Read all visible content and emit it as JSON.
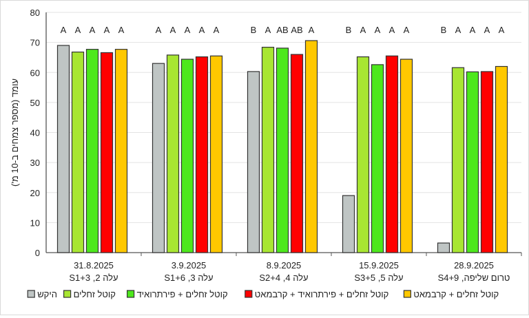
{
  "chart_data": {
    "type": "bar",
    "ylabel": "עומד (מספר צמחים ב-10 מ')",
    "ylim": [
      0,
      80
    ],
    "yticks": [
      0,
      10,
      20,
      30,
      40,
      50,
      60,
      70,
      80
    ],
    "grid": true,
    "legend_position": "bottom",
    "categories": [
      {
        "line1": "31.8.2025",
        "line2": "עלה 2, S1+3"
      },
      {
        "line1": "3.9.2025",
        "line2": "עלה 3, S1+6"
      },
      {
        "line1": "8.9.2025",
        "line2": "עלה 4, S2+4"
      },
      {
        "line1": "15.9.2025",
        "line2": "עלה 5, S3+5"
      },
      {
        "line1": "28.9.2025",
        "line2": "טרום שליפה, S4+9"
      }
    ],
    "series": [
      {
        "name": "היקש",
        "color": "#BFC5C4",
        "values": [
          69.0,
          63.0,
          60.3,
          19.0,
          3.2
        ],
        "letters": [
          "A",
          "A",
          "B",
          "B",
          "B"
        ]
      },
      {
        "name": "קוטל זחלים",
        "color": "#A8E632",
        "values": [
          66.8,
          65.8,
          68.4,
          65.2,
          61.6
        ],
        "letters": [
          "A",
          "A",
          "A",
          "A",
          "A"
        ]
      },
      {
        "name": "קוטל זחלים + פירתרואיד",
        "color": "#4DE81C",
        "values": [
          67.7,
          64.4,
          68.1,
          62.6,
          60.2
        ],
        "letters": [
          "A",
          "A",
          "AB",
          "A",
          "A"
        ]
      },
      {
        "name": "קוטל זחלים + פירתרואיד + קרבמאט",
        "color": "#FF0000",
        "values": [
          66.6,
          65.2,
          66.0,
          65.5,
          60.3
        ],
        "letters": [
          "A",
          "A",
          "AB",
          "A",
          "A"
        ]
      },
      {
        "name": "קוטל זחלים + קרבמאט",
        "color": "#FFC800",
        "values": [
          67.7,
          65.5,
          70.6,
          64.4,
          62.0
        ],
        "letters": [
          "A",
          "A",
          "A",
          "A",
          "A"
        ]
      }
    ]
  }
}
